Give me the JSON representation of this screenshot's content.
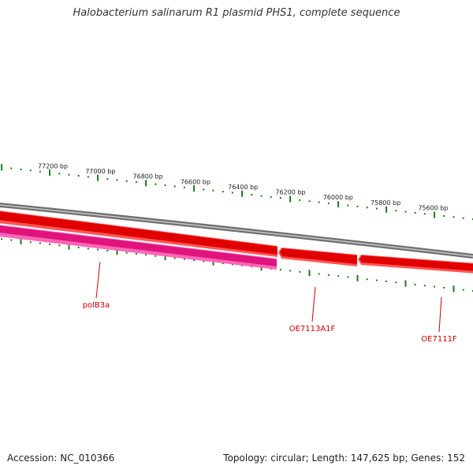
{
  "title": "Halobacterium salinarum R1 plasmid PHS1, complete sequence",
  "footer": {
    "accession": "Accession: NC_010366",
    "stats": "Topology: circular; Length: 147,625 bp; Genes: 152"
  },
  "ruler_labels": [
    "77200 bp",
    "77000 bp",
    "76800 bp",
    "76600 bp",
    "76400 bp",
    "76200 bp",
    "76000 bp",
    "75800 bp",
    "75600 bp"
  ],
  "genes": [
    {
      "name": "polB3a",
      "strand": "reverse",
      "color": "#e0147c"
    },
    {
      "name": "OE7113A1F",
      "strand": "forward",
      "color": "#e00000"
    },
    {
      "name": "OE7111F",
      "strand": "forward",
      "color": "#e00000"
    }
  ],
  "colors": {
    "backbone": "#8a8a8a",
    "ticks": "#1a7a1a",
    "forward_gene": "#e00000",
    "reverse_gene": "#e0147c",
    "label": "#cc0000"
  }
}
